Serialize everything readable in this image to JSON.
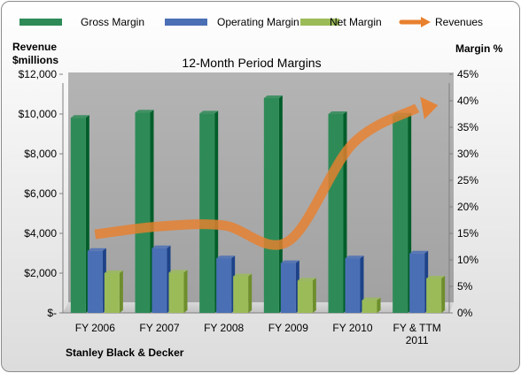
{
  "chart_data": {
    "type": "bar",
    "title": "12-Month Period Margins",
    "company": "Stanley Black & Decker",
    "left_axis_label": [
      "Revenue",
      "$millions"
    ],
    "right_axis_label": "Margin %",
    "categories": [
      [
        "FY 2006"
      ],
      [
        "FY 2007"
      ],
      [
        "FY 2008"
      ],
      [
        "FY 2009"
      ],
      [
        "FY 2010"
      ],
      [
        "FY & TTM",
        "2011"
      ]
    ],
    "left_axis": {
      "min": 0,
      "max": 12000,
      "step": 2000,
      "tick_labels": [
        "$-",
        "$2,000",
        "$4,000",
        "$6,000",
        "$8,000",
        "$10,000",
        "$12,000"
      ]
    },
    "right_axis": {
      "min": 0,
      "max": 45,
      "step": 5,
      "tick_labels": [
        "0%",
        "5%",
        "10%",
        "15%",
        "20%",
        "25%",
        "30%",
        "35%",
        "40%",
        "45%"
      ]
    },
    "series": [
      {
        "name": "Gross Margin",
        "axis": "right",
        "kind": "bar",
        "color": "#2e8b57",
        "values": [
          36.8,
          37.8,
          37.6,
          40.5,
          37.5,
          37.2
        ]
      },
      {
        "name": "Operating Margin",
        "axis": "right",
        "kind": "bar",
        "color": "#4a6fb5",
        "values": [
          11.7,
          12.2,
          10.3,
          9.4,
          10.3,
          11.2
        ]
      },
      {
        "name": "Net Margin",
        "axis": "right",
        "kind": "bar",
        "color": "#9bbb59",
        "values": [
          7.5,
          7.6,
          6.9,
          6.1,
          2.4,
          6.5
        ]
      },
      {
        "name": "Revenues",
        "axis": "left",
        "kind": "arrow",
        "color": "#e8802e",
        "values": [
          3950,
          4350,
          4400,
          3600,
          8500,
          10300
        ]
      }
    ],
    "legend_position": "top",
    "grid": false
  }
}
